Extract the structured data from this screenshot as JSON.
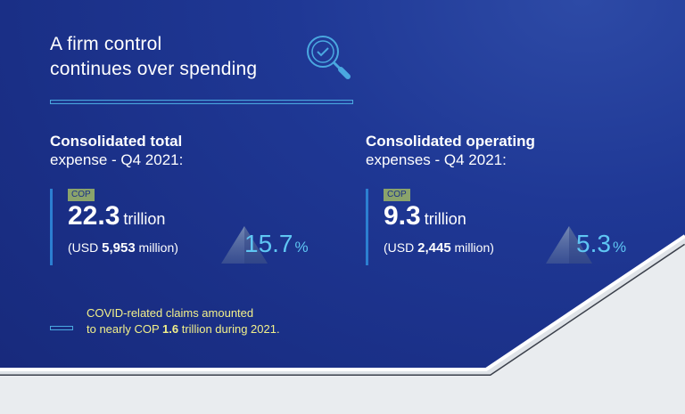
{
  "headline": {
    "line1": "A firm control",
    "line2": "continues over spending"
  },
  "icons": {
    "search": "search-check-icon",
    "arrow": "triangle-up-icon"
  },
  "colors": {
    "background": "#1a2f86",
    "accent": "#5fc6f3",
    "badge": "#8aa36b",
    "note": "#f2f08a"
  },
  "left": {
    "title": "Consolidated total",
    "subtitle": "expense - Q4 2021:",
    "currency": "COP",
    "amount": "22.3",
    "unit": "trillion",
    "usd_prefix": "(USD ",
    "usd_value": "5,953",
    "usd_suffix": " million)",
    "change": "15.7",
    "change_sign": "%"
  },
  "right": {
    "title": "Consolidated operating",
    "subtitle": "expenses - Q4 2021:",
    "currency": "COP",
    "amount": "9.3",
    "unit": "trillion",
    "usd_prefix": "(USD ",
    "usd_value": "2,445",
    "usd_suffix": " million)",
    "change": "5.3",
    "change_sign": "%"
  },
  "note": {
    "line1": "COVID-related claims amounted",
    "line2_pre": "to nearly COP ",
    "line2_bold": "1.6",
    "line2_post": " trillion during 2021."
  }
}
